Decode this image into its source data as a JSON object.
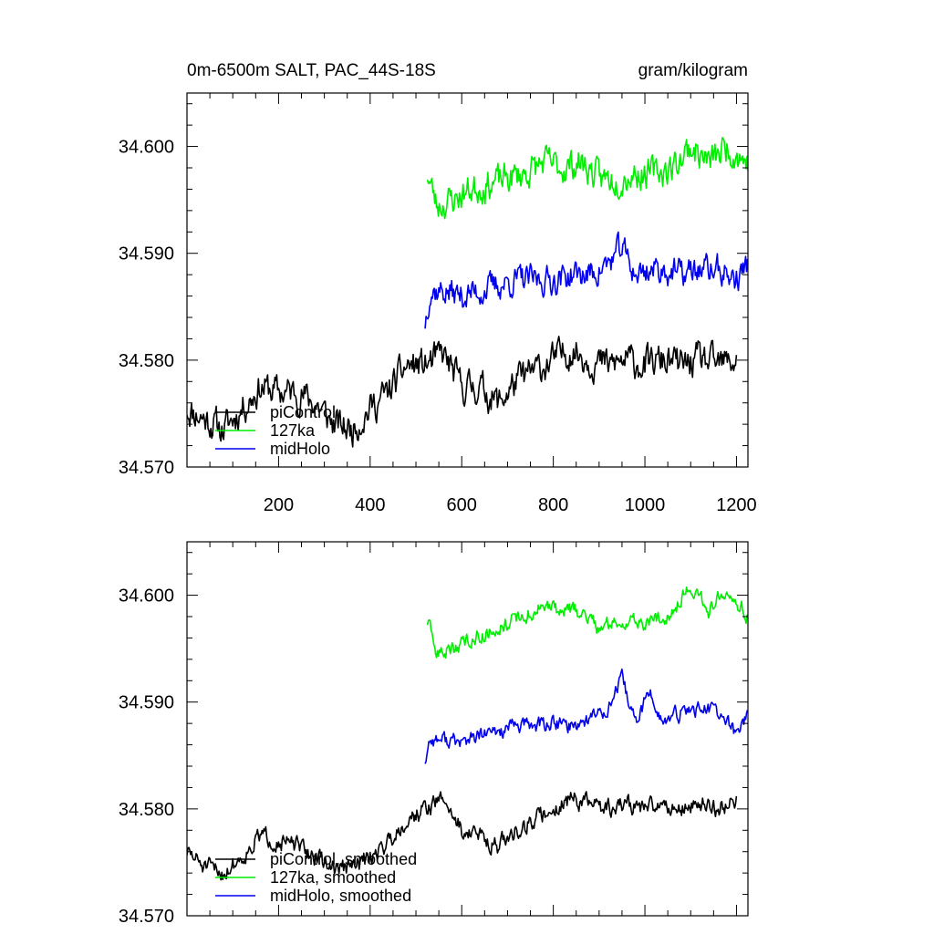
{
  "chart_data": [
    {
      "type": "line",
      "title": "0m-6500m SALT, PAC_44S-18S",
      "units": "gram/kilogram",
      "xlim": [
        0,
        1225
      ],
      "ylim": [
        34.57,
        34.605
      ],
      "xticks": [
        200,
        400,
        600,
        800,
        1000,
        1200
      ],
      "xtick_labels": [
        "200",
        "400",
        "600",
        "800",
        "1000",
        "1200"
      ],
      "yticks": [
        34.57,
        34.58,
        34.59,
        34.6
      ],
      "ytick_labels": [
        "34.570",
        "34.580",
        "34.590",
        "34.600"
      ],
      "legend_position": "bottom-left",
      "series": [
        {
          "name": "piControl",
          "color": "#000000",
          "x_start": 0,
          "x_end": 1200,
          "anchors": [
            [
              0,
              34.5755
            ],
            [
              40,
              34.5745
            ],
            [
              80,
              34.5735
            ],
            [
              120,
              34.5755
            ],
            [
              160,
              34.5775
            ],
            [
              200,
              34.577
            ],
            [
              240,
              34.577
            ],
            [
              280,
              34.576
            ],
            [
              320,
              34.574
            ],
            [
              360,
              34.5735
            ],
            [
              400,
              34.5755
            ],
            [
              440,
              34.577
            ],
            [
              480,
              34.5795
            ],
            [
              520,
              34.5795
            ],
            [
              560,
              34.5805
            ],
            [
              600,
              34.5775
            ],
            [
              640,
              34.5775
            ],
            [
              680,
              34.576
            ],
            [
              720,
              34.578
            ],
            [
              760,
              34.579
            ],
            [
              800,
              34.58
            ],
            [
              840,
              34.581
            ],
            [
              880,
              34.58
            ],
            [
              920,
              34.5795
            ],
            [
              960,
              34.58
            ],
            [
              1000,
              34.5795
            ],
            [
              1040,
              34.58
            ],
            [
              1080,
              34.5795
            ],
            [
              1120,
              34.58
            ],
            [
              1160,
              34.5795
            ],
            [
              1200,
              34.58
            ]
          ],
          "noise": 0.00125,
          "seed": 11
        },
        {
          "name": "127ka",
          "color": "#00ee00",
          "x_start": 525,
          "x_end": 1225,
          "anchors": [
            [
              525,
              34.5975
            ],
            [
              545,
              34.5945
            ],
            [
              580,
              34.595
            ],
            [
              620,
              34.596
            ],
            [
              660,
              34.5965
            ],
            [
              700,
              34.597
            ],
            [
              740,
              34.5975
            ],
            [
              780,
              34.5985
            ],
            [
              820,
              34.598
            ],
            [
              860,
              34.5985
            ],
            [
              900,
              34.597
            ],
            [
              940,
              34.597
            ],
            [
              980,
              34.5975
            ],
            [
              1020,
              34.5975
            ],
            [
              1060,
              34.598
            ],
            [
              1100,
              34.6
            ],
            [
              1140,
              34.5985
            ],
            [
              1180,
              34.6
            ],
            [
              1225,
              34.5985
            ]
          ],
          "noise": 0.0012,
          "seed": 23
        },
        {
          "name": "midHolo",
          "color": "#0000ee",
          "x_start": 520,
          "x_end": 1225,
          "anchors": [
            [
              520,
              34.5835
            ],
            [
              530,
              34.5865
            ],
            [
              560,
              34.5865
            ],
            [
              600,
              34.586
            ],
            [
              640,
              34.5865
            ],
            [
              680,
              34.587
            ],
            [
              720,
              34.5875
            ],
            [
              760,
              34.5875
            ],
            [
              800,
              34.5875
            ],
            [
              840,
              34.588
            ],
            [
              880,
              34.588
            ],
            [
              920,
              34.589
            ],
            [
              950,
              34.5905
            ],
            [
              980,
              34.588
            ],
            [
              1010,
              34.5885
            ],
            [
              1040,
              34.5885
            ],
            [
              1080,
              34.588
            ],
            [
              1120,
              34.5885
            ],
            [
              1160,
              34.5885
            ],
            [
              1200,
              34.5875
            ],
            [
              1225,
              34.589
            ]
          ],
          "noise": 0.0011,
          "seed": 37
        }
      ]
    },
    {
      "type": "line",
      "xlim": [
        0,
        1225
      ],
      "ylim": [
        34.57,
        34.605
      ],
      "xticks": [
        200,
        400,
        600,
        800,
        1000,
        1200
      ],
      "yticks": [
        34.57,
        34.58,
        34.59,
        34.6
      ],
      "ytick_labels": [
        "34.570",
        "34.580",
        "34.590",
        "34.600"
      ],
      "legend_position": "bottom-left",
      "series": [
        {
          "name": "piControl, smoothed",
          "color": "#000000",
          "x_start": 0,
          "x_end": 1200,
          "anchors": [
            [
              0,
              34.576
            ],
            [
              40,
              34.5745
            ],
            [
              80,
              34.574
            ],
            [
              120,
              34.5755
            ],
            [
              160,
              34.5775
            ],
            [
              200,
              34.577
            ],
            [
              240,
              34.5765
            ],
            [
              280,
              34.5755
            ],
            [
              320,
              34.5745
            ],
            [
              360,
              34.5745
            ],
            [
              400,
              34.5755
            ],
            [
              440,
              34.577
            ],
            [
              480,
              34.579
            ],
            [
              520,
              34.58
            ],
            [
              560,
              34.581
            ],
            [
              600,
              34.578
            ],
            [
              640,
              34.5775
            ],
            [
              680,
              34.5765
            ],
            [
              720,
              34.578
            ],
            [
              760,
              34.579
            ],
            [
              800,
              34.58
            ],
            [
              840,
              34.581
            ],
            [
              880,
              34.5805
            ],
            [
              920,
              34.58
            ],
            [
              960,
              34.5805
            ],
            [
              1000,
              34.58
            ],
            [
              1040,
              34.5805
            ],
            [
              1080,
              34.58
            ],
            [
              1120,
              34.5805
            ],
            [
              1160,
              34.58
            ],
            [
              1200,
              34.581
            ]
          ],
          "noise": 0.0007,
          "seed": 51
        },
        {
          "name": "127ka, smoothed",
          "color": "#00ee00",
          "x_start": 525,
          "x_end": 1225,
          "anchors": [
            [
              525,
              34.5975
            ],
            [
              545,
              34.5945
            ],
            [
              580,
              34.595
            ],
            [
              620,
              34.596
            ],
            [
              660,
              34.5965
            ],
            [
              700,
              34.5975
            ],
            [
              740,
              34.598
            ],
            [
              780,
              34.599
            ],
            [
              820,
              34.5985
            ],
            [
              860,
              34.5985
            ],
            [
              900,
              34.597
            ],
            [
              940,
              34.5975
            ],
            [
              980,
              34.5975
            ],
            [
              1020,
              34.5975
            ],
            [
              1060,
              34.5985
            ],
            [
              1100,
              34.601
            ],
            [
              1140,
              34.5985
            ],
            [
              1180,
              34.601
            ],
            [
              1225,
              34.598
            ]
          ],
          "noise": 0.0006,
          "seed": 63
        },
        {
          "name": "midHolo, smoothed",
          "color": "#0000ee",
          "x_start": 520,
          "x_end": 1225,
          "anchors": [
            [
              520,
              34.5845
            ],
            [
              530,
              34.5865
            ],
            [
              560,
              34.5865
            ],
            [
              600,
              34.5862
            ],
            [
              640,
              34.5868
            ],
            [
              680,
              34.5872
            ],
            [
              720,
              34.5878
            ],
            [
              760,
              34.5878
            ],
            [
              800,
              34.588
            ],
            [
              840,
              34.5878
            ],
            [
              880,
              34.5885
            ],
            [
              920,
              34.5895
            ],
            [
              950,
              34.592
            ],
            [
              980,
              34.588
            ],
            [
              1010,
              34.591
            ],
            [
              1040,
              34.588
            ],
            [
              1080,
              34.589
            ],
            [
              1120,
              34.5895
            ],
            [
              1160,
              34.589
            ],
            [
              1200,
              34.587
            ],
            [
              1225,
              34.589
            ]
          ],
          "noise": 0.0006,
          "seed": 77
        }
      ]
    }
  ]
}
